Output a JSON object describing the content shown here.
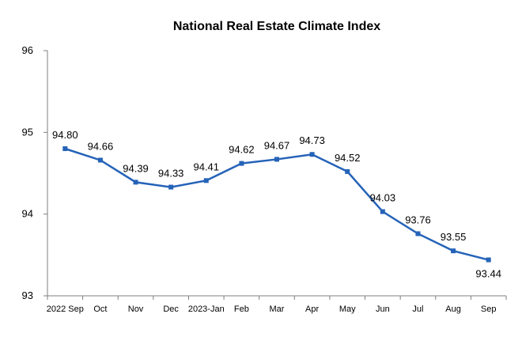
{
  "chart_data": {
    "type": "line",
    "title": "National Real Estate Climate Index",
    "categories": [
      "2022 Sep",
      "Oct",
      "Nov",
      "Dec",
      "2023-Jan",
      "Feb",
      "Mar",
      "Apr",
      "May",
      "Jun",
      "Jul",
      "Aug",
      "Sep"
    ],
    "series": [
      {
        "values": [
          94.8,
          94.66,
          94.39,
          94.33,
          94.41,
          94.62,
          94.67,
          94.73,
          94.52,
          94.03,
          93.76,
          93.55,
          93.44
        ],
        "labels": [
          "94.80",
          "94.66",
          "94.39",
          "94.33",
          "94.41",
          "94.62",
          "94.67",
          "94.73",
          "94.52",
          "94.03",
          "93.76",
          "93.55",
          "93.44"
        ]
      }
    ],
    "ylim": [
      93,
      96
    ],
    "yticks": [
      "93",
      "94",
      "95",
      "96"
    ],
    "grid": false,
    "legend": "none",
    "colors": {
      "line": "#2563b8",
      "axis": "#7f7f7f"
    }
  }
}
